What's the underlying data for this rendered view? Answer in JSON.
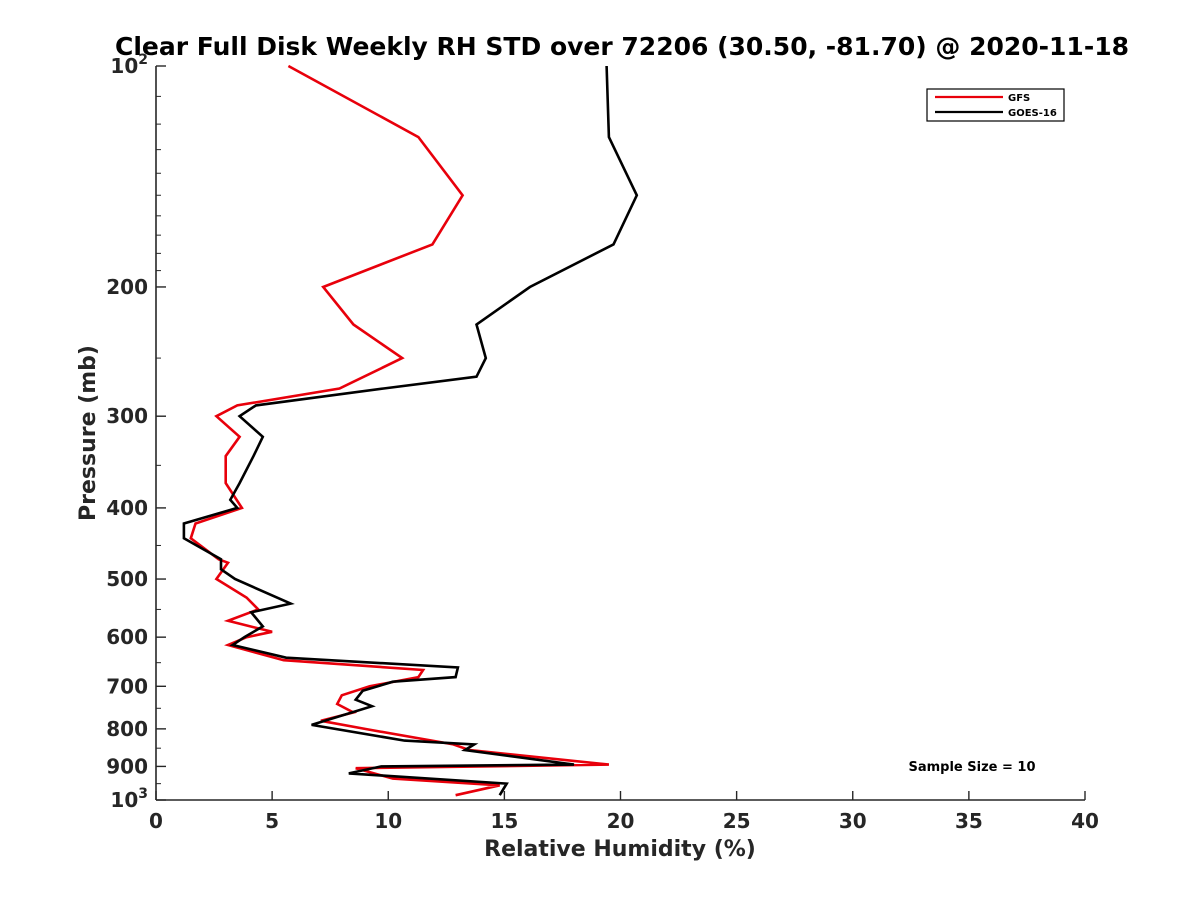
{
  "chart_data": {
    "type": "line",
    "title": "Clear Full Disk Weekly RH STD over 72206 (30.50, -81.70) @ 2020-11-18",
    "xlabel": "Relative Humidity (%)",
    "ylabel": "Pressure (mb)",
    "xlim": [
      0,
      40
    ],
    "ylim": [
      100,
      1000
    ],
    "yscale": "log",
    "y_reversed": true,
    "grid": false,
    "legend_position": "top-right",
    "x_ticks": [
      "0",
      "5",
      "10",
      "15",
      "20",
      "25",
      "30",
      "35",
      "40"
    ],
    "y_ticks": [
      {
        "value": 100,
        "base": "10",
        "exp": "2"
      },
      {
        "value": 200,
        "label": "200"
      },
      {
        "value": 300,
        "label": "300"
      },
      {
        "value": 400,
        "label": "400"
      },
      {
        "value": 500,
        "label": "500"
      },
      {
        "value": 600,
        "label": "600"
      },
      {
        "value": 700,
        "label": "700"
      },
      {
        "value": 800,
        "label": "800"
      },
      {
        "value": 900,
        "label": "900"
      },
      {
        "value": 1000,
        "base": "10",
        "exp": "3"
      }
    ],
    "series": [
      {
        "name": "GFS",
        "color": "#e8000b",
        "points": [
          [
            5.7,
            100
          ],
          [
            11.3,
            125
          ],
          [
            13.2,
            150
          ],
          [
            11.9,
            175
          ],
          [
            7.2,
            200
          ],
          [
            8.5,
            225
          ],
          [
            10.6,
            250
          ],
          [
            7.9,
            275
          ],
          [
            3.5,
            290
          ],
          [
            2.6,
            300
          ],
          [
            3.6,
            320
          ],
          [
            3.0,
            340
          ],
          [
            3.0,
            370
          ],
          [
            3.7,
            400
          ],
          [
            1.7,
            420
          ],
          [
            1.5,
            440
          ],
          [
            2.7,
            470
          ],
          [
            3.1,
            475
          ],
          [
            2.6,
            500
          ],
          [
            3.9,
            530
          ],
          [
            4.4,
            550
          ],
          [
            3.1,
            570
          ],
          [
            5.0,
            590
          ],
          [
            3.9,
            600
          ],
          [
            3.1,
            615
          ],
          [
            5.5,
            645
          ],
          [
            11.5,
            665
          ],
          [
            11.3,
            680
          ],
          [
            9.2,
            700
          ],
          [
            8.0,
            720
          ],
          [
            7.8,
            740
          ],
          [
            8.5,
            760
          ],
          [
            7.1,
            780
          ],
          [
            9.0,
            800
          ],
          [
            12.8,
            840
          ],
          [
            13.5,
            855
          ],
          [
            19.5,
            895
          ],
          [
            8.6,
            905
          ],
          [
            10.2,
            935
          ],
          [
            14.8,
            955
          ],
          [
            12.9,
            985
          ]
        ]
      },
      {
        "name": "GOES-16",
        "color": "#000000",
        "points": [
          [
            19.4,
            100
          ],
          [
            19.5,
            125
          ],
          [
            20.7,
            150
          ],
          [
            19.7,
            175
          ],
          [
            16.1,
            200
          ],
          [
            13.8,
            225
          ],
          [
            14.2,
            250
          ],
          [
            13.8,
            265
          ],
          [
            9.8,
            275
          ],
          [
            4.3,
            290
          ],
          [
            3.6,
            300
          ],
          [
            4.6,
            320
          ],
          [
            4.2,
            340
          ],
          [
            3.6,
            370
          ],
          [
            3.2,
            390
          ],
          [
            3.5,
            400
          ],
          [
            1.2,
            420
          ],
          [
            1.2,
            440
          ],
          [
            2.8,
            470
          ],
          [
            2.8,
            485
          ],
          [
            3.4,
            500
          ],
          [
            5.8,
            540
          ],
          [
            4.1,
            555
          ],
          [
            4.6,
            580
          ],
          [
            3.8,
            600
          ],
          [
            3.3,
            615
          ],
          [
            5.6,
            640
          ],
          [
            13.0,
            660
          ],
          [
            12.9,
            680
          ],
          [
            10.2,
            690
          ],
          [
            8.9,
            710
          ],
          [
            8.6,
            730
          ],
          [
            9.3,
            745
          ],
          [
            6.7,
            790
          ],
          [
            10.7,
            830
          ],
          [
            13.7,
            840
          ],
          [
            13.3,
            855
          ],
          [
            18.0,
            895
          ],
          [
            9.7,
            900
          ],
          [
            8.3,
            920
          ],
          [
            15.1,
            950
          ],
          [
            14.8,
            985
          ]
        ]
      }
    ],
    "annotation": "Sample Size = 10"
  }
}
